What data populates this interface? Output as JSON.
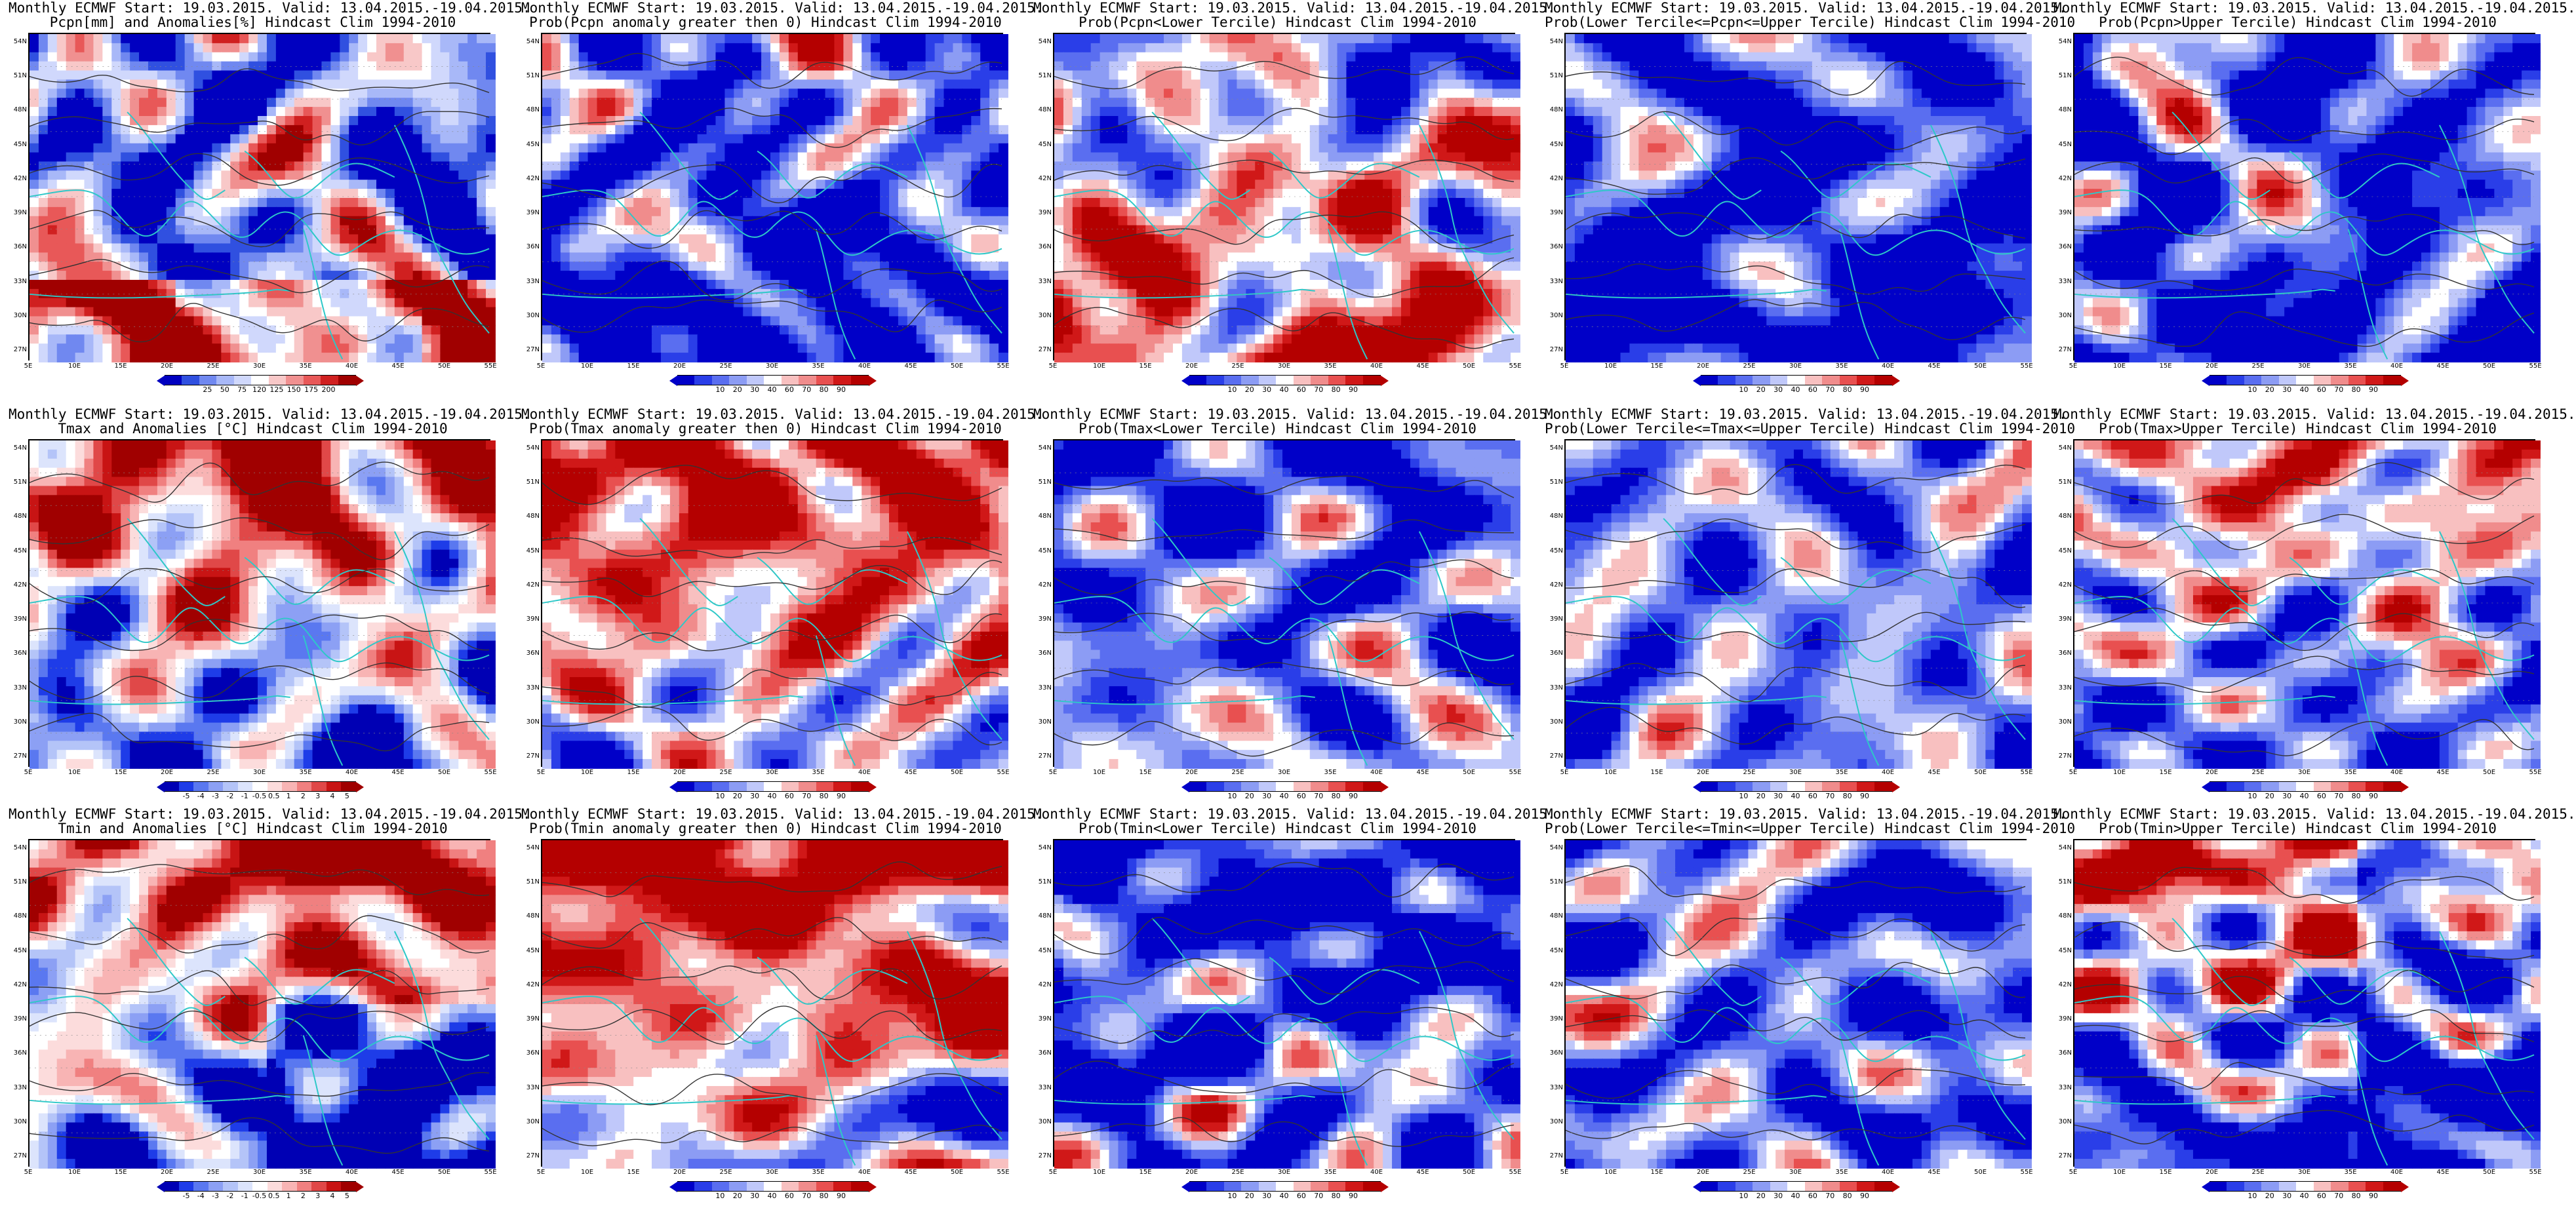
{
  "rows": [
    {
      "panels": [
        {
          "title1": "Monthly ECMWF Start: 19.03.2015. Valid: 13.04.2015.-19.04.2015.",
          "title2": "Pcpn[mm] and Anomalies[%] Hindcast Clim 1994-2010",
          "scale": "pcpn",
          "cbar": [
            "25",
            "50",
            "75",
            "120",
            "125",
            "150",
            "175",
            "200"
          ]
        },
        {
          "title1": "Monthly ECMWF Start: 19.03.2015. Valid: 13.04.2015.-19.04.2015.",
          "title2": "Prob(Pcpn anomaly greater then 0) Hindcast Clim 1994-2010",
          "scale": "prob",
          "cbar": [
            "10",
            "20",
            "30",
            "40",
            "60",
            "70",
            "80",
            "90"
          ]
        },
        {
          "title1": "Monthly ECMWF Start: 19.03.2015. Valid: 13.04.2015.-19.04.2015.",
          "title2": "Prob(Pcpn<Lower Tercile) Hindcast Clim 1994-2010",
          "scale": "prob",
          "cbar": [
            "10",
            "20",
            "30",
            "40",
            "60",
            "70",
            "80",
            "90"
          ]
        },
        {
          "title1": "Monthly ECMWF Start: 19.03.2015. Valid: 13.04.2015.-19.04.2015.",
          "title2": "Prob(Lower Tercile<=Pcpn<=Upper Tercile) Hindcast Clim 1994-2010",
          "scale": "prob",
          "cbar": [
            "10",
            "20",
            "30",
            "40",
            "60",
            "70",
            "80",
            "90"
          ]
        },
        {
          "title1": "Monthly ECMWF Start: 19.03.2015. Valid: 13.04.2015.-19.04.2015.",
          "title2": "Prob(Pcpn>Upper Tercile) Hindcast Clim 1994-2010",
          "scale": "prob",
          "cbar": [
            "10",
            "20",
            "30",
            "40",
            "60",
            "70",
            "80",
            "90"
          ]
        }
      ]
    },
    {
      "panels": [
        {
          "title1": "Monthly ECMWF Start: 19.03.2015. Valid: 13.04.2015.-19.04.2015.",
          "title2": "Tmax and Anomalies [°C] Hindcast Clim 1994-2010",
          "scale": "temp",
          "cbar": [
            "-5",
            "-4",
            "-3",
            "-2",
            "-1",
            "-0.5",
            "0.5",
            "1",
            "2",
            "3",
            "4",
            "5"
          ]
        },
        {
          "title1": "Monthly ECMWF Start: 19.03.2015. Valid: 13.04.2015.-19.04.2015.",
          "title2": "Prob(Tmax anomaly greater then 0) Hindcast Clim 1994-2010",
          "scale": "prob",
          "cbar": [
            "10",
            "20",
            "30",
            "40",
            "60",
            "70",
            "80",
            "90"
          ]
        },
        {
          "title1": "Monthly ECMWF Start: 19.03.2015. Valid: 13.04.2015.-19.04.2015.",
          "title2": "Prob(Tmax<Lower Tercile) Hindcast Clim 1994-2010",
          "scale": "prob",
          "cbar": [
            "10",
            "20",
            "30",
            "40",
            "60",
            "70",
            "80",
            "90"
          ]
        },
        {
          "title1": "Monthly ECMWF Start: 19.03.2015. Valid: 13.04.2015.-19.04.2015.",
          "title2": "Prob(Lower Tercile<=Tmax<=Upper Tercile) Hindcast Clim 1994-2010",
          "scale": "prob",
          "cbar": [
            "10",
            "20",
            "30",
            "40",
            "60",
            "70",
            "80",
            "90"
          ]
        },
        {
          "title1": "Monthly ECMWF Start: 19.03.2015. Valid: 13.04.2015.-19.04.2015.",
          "title2": "Prob(Tmax>Upper Tercile) Hindcast Clim 1994-2010",
          "scale": "prob",
          "cbar": [
            "10",
            "20",
            "30",
            "40",
            "60",
            "70",
            "80",
            "90"
          ]
        }
      ]
    },
    {
      "panels": [
        {
          "title1": "Monthly ECMWF Start: 19.03.2015. Valid: 13.04.2015.-19.04.2015.",
          "title2": "Tmin and Anomalies [°C] Hindcast Clim 1994-2010",
          "scale": "temp",
          "cbar": [
            "-5",
            "-4",
            "-3",
            "-2",
            "-1",
            "-0.5",
            "0.5",
            "1",
            "2",
            "3",
            "4",
            "5"
          ]
        },
        {
          "title1": "Monthly ECMWF Start: 19.03.2015. Valid: 13.04.2015.-19.04.2015.",
          "title2": "Prob(Tmin anomaly greater then 0) Hindcast Clim 1994-2010",
          "scale": "prob",
          "cbar": [
            "10",
            "20",
            "30",
            "40",
            "60",
            "70",
            "80",
            "90"
          ]
        },
        {
          "title1": "Monthly ECMWF Start: 19.03.2015. Valid: 13.04.2015.-19.04.2015.",
          "title2": "Prob(Tmin<Lower Tercile) Hindcast Clim 1994-2010",
          "scale": "prob",
          "cbar": [
            "10",
            "20",
            "30",
            "40",
            "60",
            "70",
            "80",
            "90"
          ]
        },
        {
          "title1": "Monthly ECMWF Start: 19.03.2015. Valid: 13.04.2015.-19.04.2015.",
          "title2": "Prob(Lower Tercile<=Tmin<=Upper Tercile) Hindcast Clim 1994-2010",
          "scale": "prob",
          "cbar": [
            "10",
            "20",
            "30",
            "40",
            "60",
            "70",
            "80",
            "90"
          ]
        },
        {
          "title1": "Monthly ECMWF Start: 19.03.2015. Valid: 13.04.2015.-19.04.2015.",
          "title2": "Prob(Tmin>Upper Tercile) Hindcast Clim 1994-2010",
          "scale": "prob",
          "cbar": [
            "10",
            "20",
            "30",
            "40",
            "60",
            "70",
            "80",
            "90"
          ]
        }
      ]
    }
  ],
  "lat_labels": [
    "54N",
    "51N",
    "48N",
    "45N",
    "42N",
    "39N",
    "36N",
    "33N",
    "30N",
    "27N"
  ],
  "lon_labels": [
    "5E",
    "10E",
    "15E",
    "20E",
    "25E",
    "30E",
    "35E",
    "40E",
    "45E",
    "50E",
    "55E"
  ],
  "palettes": {
    "prob": [
      "#0000c8",
      "#2a3ee8",
      "#5a6ef0",
      "#8c9cf4",
      "#c0c8fa",
      "#ffffff",
      "#f8c0c0",
      "#f08c8c",
      "#e85050",
      "#d01818",
      "#b40000"
    ],
    "pcpn": [
      "#0000c0",
      "#3050e0",
      "#7088f0",
      "#a8b8f8",
      "#d0d8fc",
      "#ffffff",
      "#f8c8c8",
      "#f09090",
      "#e85858",
      "#d02020",
      "#a00000"
    ],
    "temp": [
      "#0000b4",
      "#1e3ce8",
      "#5a78f0",
      "#8ca0f4",
      "#b4c4f8",
      "#dce4fc",
      "#ffffff",
      "#fcdcdc",
      "#f8b4b4",
      "#f08080",
      "#e04848",
      "#c81414",
      "#a00000"
    ]
  },
  "colors": {
    "coast": "#2ec8c8",
    "contour": "#333333",
    "frame": "#000000"
  }
}
